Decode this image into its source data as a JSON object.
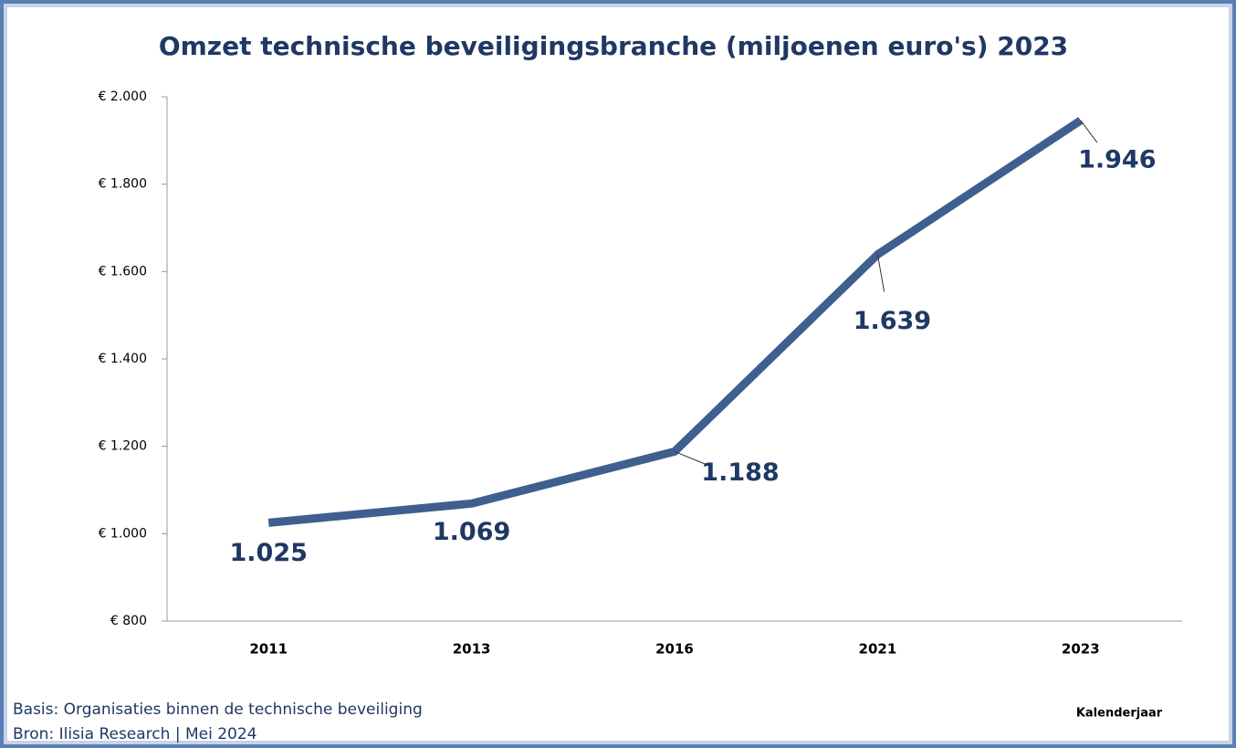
{
  "chart_data": {
    "type": "line",
    "title": "Omzet technische beveiligingsbranche (miljoenen euro's) 2023",
    "categories": [
      "2011",
      "2013",
      "2016",
      "2021",
      "2023"
    ],
    "values": [
      1025,
      1069,
      1188,
      1639,
      1946
    ],
    "value_labels": [
      "1.025",
      "1.069",
      "1.188",
      "1.639",
      "1.946"
    ],
    "color": "#3f5f8f",
    "ylim": [
      800,
      2000
    ],
    "yticks": [
      {
        "value": 800,
        "label": "€ 800"
      },
      {
        "value": 1000,
        "label": "€ 1.000"
      },
      {
        "value": 1200,
        "label": "€ 1.200"
      },
      {
        "value": 1400,
        "label": "€ 1.400"
      },
      {
        "value": 1600,
        "label": "€ 1.600"
      },
      {
        "value": 1800,
        "label": "€ 1.800"
      },
      {
        "value": 2000,
        "label": "€ 2.000"
      }
    ],
    "xlabel": "Kalenderjaar",
    "notes": [
      "Basis: Organisaties binnen de technische beveiliging",
      "Bron: Ilisia Research | Mei 2024"
    ],
    "grid": false
  }
}
